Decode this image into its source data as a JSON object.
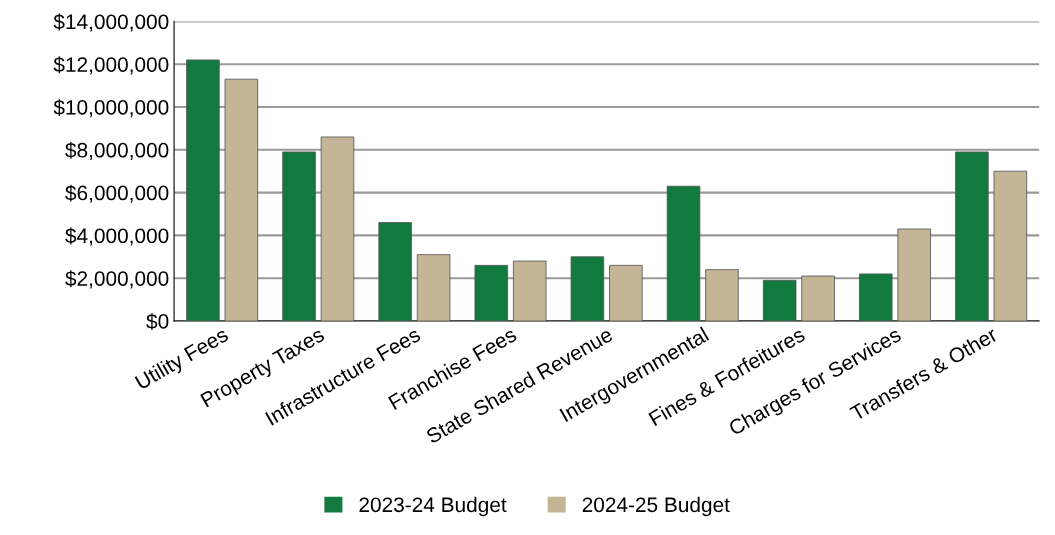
{
  "chart_data": {
    "type": "bar",
    "categories": [
      "Utility Fees",
      "Property Taxes",
      "Infrastructure Fees",
      "Franchise Fees",
      "State Shared Revenue",
      "Intergovernmental",
      "Fines & Forfeitures",
      "Charges for Services",
      "Transfers & Other"
    ],
    "series": [
      {
        "name": "2023-24 Budget",
        "color": "#127a3e",
        "values": [
          12200000,
          7900000,
          4600000,
          2600000,
          3000000,
          6300000,
          1900000,
          2200000,
          7900000
        ]
      },
      {
        "name": "2024-25 Budget",
        "color": "#c4b596",
        "values": [
          11300000,
          8600000,
          3100000,
          2800000,
          2600000,
          2400000,
          2100000,
          4300000,
          7000000
        ]
      }
    ],
    "ylim": [
      0,
      14000000
    ],
    "yticks": [
      {
        "value": 0,
        "label": "$0"
      },
      {
        "value": 2000000,
        "label": "$2,000,000"
      },
      {
        "value": 4000000,
        "label": "$4,000,000"
      },
      {
        "value": 6000000,
        "label": "$6,000,000"
      },
      {
        "value": 8000000,
        "label": "$8,000,000"
      },
      {
        "value": 10000000,
        "label": "$10,000,000"
      },
      {
        "value": 12000000,
        "label": "$12,000,000"
      },
      {
        "value": 14000000,
        "label": "$14,000,000"
      }
    ],
    "grid": "y",
    "legend": "bottom"
  }
}
